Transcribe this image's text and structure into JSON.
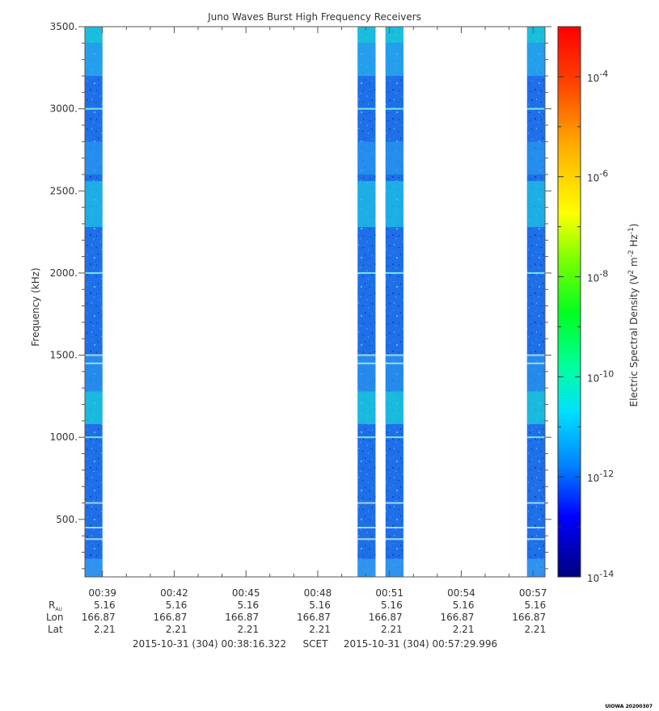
{
  "chart_data": {
    "type": "heatmap",
    "title": "Juno Waves Burst High Frequency Receivers",
    "ylabel": "Frequency (kHz)",
    "ylim": [
      150,
      3500
    ],
    "yticks": [
      500,
      1000,
      1500,
      2000,
      2500,
      3000,
      3500
    ],
    "ytick_labels": [
      "500.",
      "1000.",
      "1500.",
      "2000.",
      "2500.",
      "3000.",
      "3500."
    ],
    "x_start": "00:38:16",
    "x_end": "00:57:30",
    "xticks": [
      "00:39",
      "00:42",
      "00:45",
      "00:48",
      "00:51",
      "00:54",
      "00:57"
    ],
    "data_intervals": [
      {
        "start": "00:38:16",
        "end": "00:39:00"
      },
      {
        "start": "00:49:40",
        "end": "00:50:25"
      },
      {
        "start": "00:50:50",
        "end": "00:51:35"
      },
      {
        "start": "00:56:45",
        "end": "00:57:30"
      }
    ],
    "ephemeris": {
      "labels": [
        "R",
        "Lon",
        "Lat"
      ],
      "r_subscript": "AU",
      "r": [
        "5.16",
        "5.16",
        "5.16",
        "5.16",
        "5.16",
        "5.16",
        "5.16"
      ],
      "lon": [
        "166.87",
        "166.87",
        "166.87",
        "166.87",
        "166.87",
        "166.87",
        "166.87"
      ],
      "lat": [
        "2.21",
        "2.21",
        "2.21",
        "2.21",
        "2.21",
        "2.21",
        "2.21"
      ]
    },
    "time_range": {
      "start": "2015-10-31 (304) 00:38:16.322",
      "label": "SCET",
      "end": "2015-10-31 (304) 00:57:29.996"
    },
    "colorbar": {
      "label": "Electric Spectral Density (V",
      "label_sup1": "2",
      "label_mid": " m",
      "label_sup2": "-2",
      "label_mid2": " Hz",
      "label_sup3": "-1",
      "label_end": ")",
      "scale": "log",
      "range_exponent": [
        -14,
        -3
      ],
      "ticks": [
        {
          "base": "10",
          "exp": "-4",
          "value": -4
        },
        {
          "base": "10",
          "exp": "-6",
          "value": -6
        },
        {
          "base": "10",
          "exp": "-8",
          "value": -8
        },
        {
          "base": "10",
          "exp": "-10",
          "value": -10
        },
        {
          "base": "10",
          "exp": "-12",
          "value": -12
        },
        {
          "base": "10",
          "exp": "-14",
          "value": -14
        }
      ]
    }
  },
  "footer": "UIOWA 20200307"
}
